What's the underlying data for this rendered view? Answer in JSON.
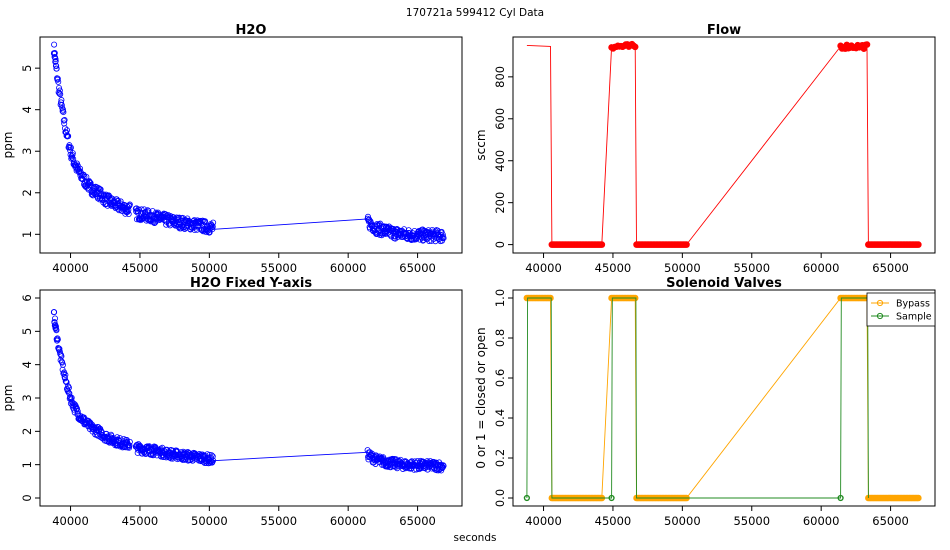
{
  "figure": {
    "title": "170721a   599412   Cyl Data",
    "shared_xlabel": "seconds"
  },
  "chart_data": [
    {
      "id": "h2o",
      "type": "scatter",
      "title": "H2O",
      "xlabel": "",
      "ylabel": "ppm",
      "xlim": [
        37800,
        68200
      ],
      "ylim": [
        0.55,
        5.75
      ],
      "xticks": [
        40000,
        45000,
        50000,
        55000,
        60000,
        65000
      ],
      "yticks": [
        1,
        2,
        3,
        4,
        5
      ],
      "series": [
        {
          "color": "#0000ff",
          "marker": "circle-open",
          "segments": [
            {
              "x": [
                38800,
                38900,
                39000,
                39200,
                39400,
                39600,
                39800,
                40000,
                40300,
                40600,
                41000,
                41500,
                42000,
                42500,
                43000,
                43500,
                44000,
                44300
              ],
              "y": [
                5.5,
                5.2,
                4.9,
                4.4,
                4.0,
                3.6,
                3.3,
                3.0,
                2.7,
                2.5,
                2.3,
                2.1,
                2.0,
                1.85,
                1.75,
                1.68,
                1.62,
                1.6
              ]
            },
            {
              "x": [
                44700,
                45500,
                46500,
                47500,
                48500,
                49500,
                50300
              ],
              "y": [
                1.5,
                1.45,
                1.38,
                1.3,
                1.25,
                1.2,
                1.15
              ]
            },
            {
              "x": [
                61400,
                62000,
                63000,
                64000,
                65000,
                66000,
                66900
              ],
              "y": [
                1.3,
                1.15,
                1.05,
                1.0,
                0.98,
                0.97,
                0.96
              ]
            }
          ],
          "connector": {
            "x": [
              50300,
              61400
            ],
            "y": [
              1.12,
              1.37
            ]
          }
        }
      ]
    },
    {
      "id": "flow",
      "type": "line",
      "title": "Flow",
      "xlabel": "",
      "ylabel": "sccm",
      "xlim": [
        37800,
        68200
      ],
      "ylim": [
        -40,
        990
      ],
      "xticks": [
        40000,
        45000,
        50000,
        55000,
        60000,
        65000
      ],
      "yticks": [
        0,
        200,
        400,
        600,
        800
      ],
      "series": [
        {
          "color": "#ff0000",
          "points": [
            [
              38800,
              950
            ],
            [
              40500,
              945
            ],
            [
              40600,
              0
            ],
            [
              44200,
              0
            ],
            [
              44900,
              945
            ],
            [
              46600,
              945
            ],
            [
              46700,
              0
            ],
            [
              50300,
              0
            ],
            [
              61400,
              945
            ],
            [
              63300,
              945
            ],
            [
              63400,
              0
            ],
            [
              67000,
              0
            ]
          ]
        }
      ]
    },
    {
      "id": "h2o-fixed",
      "type": "scatter",
      "title": "H2O Fixed Y-axis",
      "xlabel": "",
      "ylabel": "ppm",
      "xlim": [
        37800,
        68200
      ],
      "ylim": [
        -0.24,
        6.24
      ],
      "xticks": [
        40000,
        45000,
        50000,
        55000,
        60000,
        65000
      ],
      "yticks": [
        0,
        1,
        2,
        3,
        4,
        5,
        6
      ],
      "series": [
        {
          "color": "#0000ff",
          "marker": "circle-open",
          "segments": [
            {
              "x": [
                38800,
                38900,
                39000,
                39200,
                39400,
                39600,
                39800,
                40000,
                40300,
                40600,
                41000,
                41500,
                42000,
                42500,
                43000,
                43500,
                44000,
                44300
              ],
              "y": [
                5.5,
                5.2,
                4.9,
                4.4,
                4.0,
                3.6,
                3.3,
                3.0,
                2.7,
                2.5,
                2.3,
                2.1,
                2.0,
                1.85,
                1.75,
                1.68,
                1.62,
                1.6
              ]
            },
            {
              "x": [
                44700,
                45500,
                46500,
                47500,
                48500,
                49500,
                50300
              ],
              "y": [
                1.5,
                1.45,
                1.38,
                1.3,
                1.25,
                1.2,
                1.15
              ]
            },
            {
              "x": [
                61400,
                62000,
                63000,
                64000,
                65000,
                66000,
                66900
              ],
              "y": [
                1.3,
                1.15,
                1.05,
                1.0,
                0.98,
                0.97,
                0.96
              ]
            }
          ],
          "connector": {
            "x": [
              50300,
              61400
            ],
            "y": [
              1.12,
              1.37
            ]
          }
        }
      ]
    },
    {
      "id": "valves",
      "type": "line",
      "title": "Solenoid Valves",
      "xlabel": "",
      "ylabel": "0 or 1 = closed or open",
      "xlim": [
        37800,
        68200
      ],
      "ylim": [
        -0.04,
        1.04
      ],
      "xticks": [
        40000,
        45000,
        50000,
        55000,
        60000,
        65000
      ],
      "yticks": [
        0.0,
        0.2,
        0.4,
        0.6,
        0.8,
        1.0
      ],
      "legend": {
        "position": "top-right"
      },
      "series": [
        {
          "name": "Bypass",
          "color": "#ffa500",
          "points": [
            [
              38800,
              1
            ],
            [
              40500,
              1
            ],
            [
              40600,
              0
            ],
            [
              44200,
              0
            ],
            [
              44900,
              1
            ],
            [
              46600,
              1
            ],
            [
              46700,
              0
            ],
            [
              50300,
              0
            ],
            [
              61400,
              1
            ],
            [
              63300,
              1
            ],
            [
              63400,
              0
            ],
            [
              67000,
              0
            ]
          ]
        },
        {
          "name": "Sample",
          "color": "#228b22",
          "points": [
            [
              38800,
              0
            ],
            [
              38850,
              1
            ],
            [
              40550,
              1
            ],
            [
              40600,
              0
            ],
            [
              44900,
              0
            ],
            [
              44950,
              1
            ],
            [
              46650,
              1
            ],
            [
              46700,
              0
            ],
            [
              50300,
              0
            ],
            [
              61400,
              0
            ],
            [
              61450,
              1
            ],
            [
              63350,
              1
            ],
            [
              63400,
              0
            ]
          ],
          "markers": [
            [
              38800,
              0
            ],
            [
              44900,
              0
            ],
            [
              61400,
              0
            ]
          ]
        }
      ]
    }
  ]
}
